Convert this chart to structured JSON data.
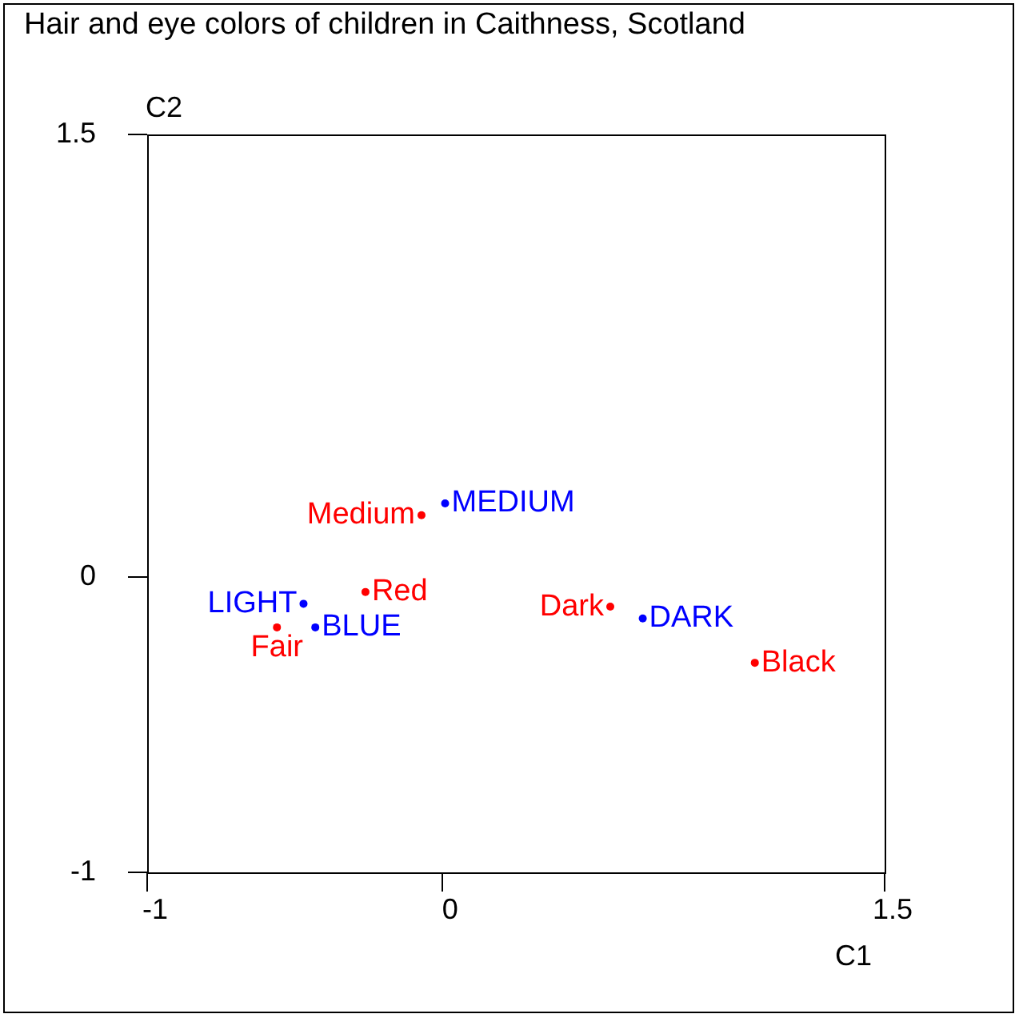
{
  "chart_data": {
    "type": "scatter",
    "title": "Hair and eye colors of children in Caithness, Scotland",
    "xlabel": "C1",
    "ylabel": "C2",
    "xlim": [
      -1,
      1.5
    ],
    "ylim": [
      -1,
      1.5
    ],
    "xticks": [
      -1,
      0,
      1.5
    ],
    "yticks": [
      -1,
      0,
      1.5
    ],
    "grid": false,
    "legend": false,
    "marker": "circle",
    "series": [
      {
        "color": "#0000ff",
        "x": [
          -0.43,
          -0.47,
          0.01,
          0.68
        ],
        "values": [
          -0.17,
          -0.09,
          0.25,
          -0.14
        ],
        "value_labels": [
          "BLUE",
          "LIGHT",
          "MEDIUM",
          "DARK"
        ]
      },
      {
        "color": "#ff0000",
        "x": [
          -0.56,
          -0.26,
          -0.07,
          0.57,
          1.06
        ],
        "values": [
          -0.17,
          -0.05,
          0.21,
          -0.1,
          -0.29
        ],
        "value_labels": [
          "Fair",
          "Red",
          "Medium",
          "Dark",
          "Black"
        ]
      }
    ]
  }
}
